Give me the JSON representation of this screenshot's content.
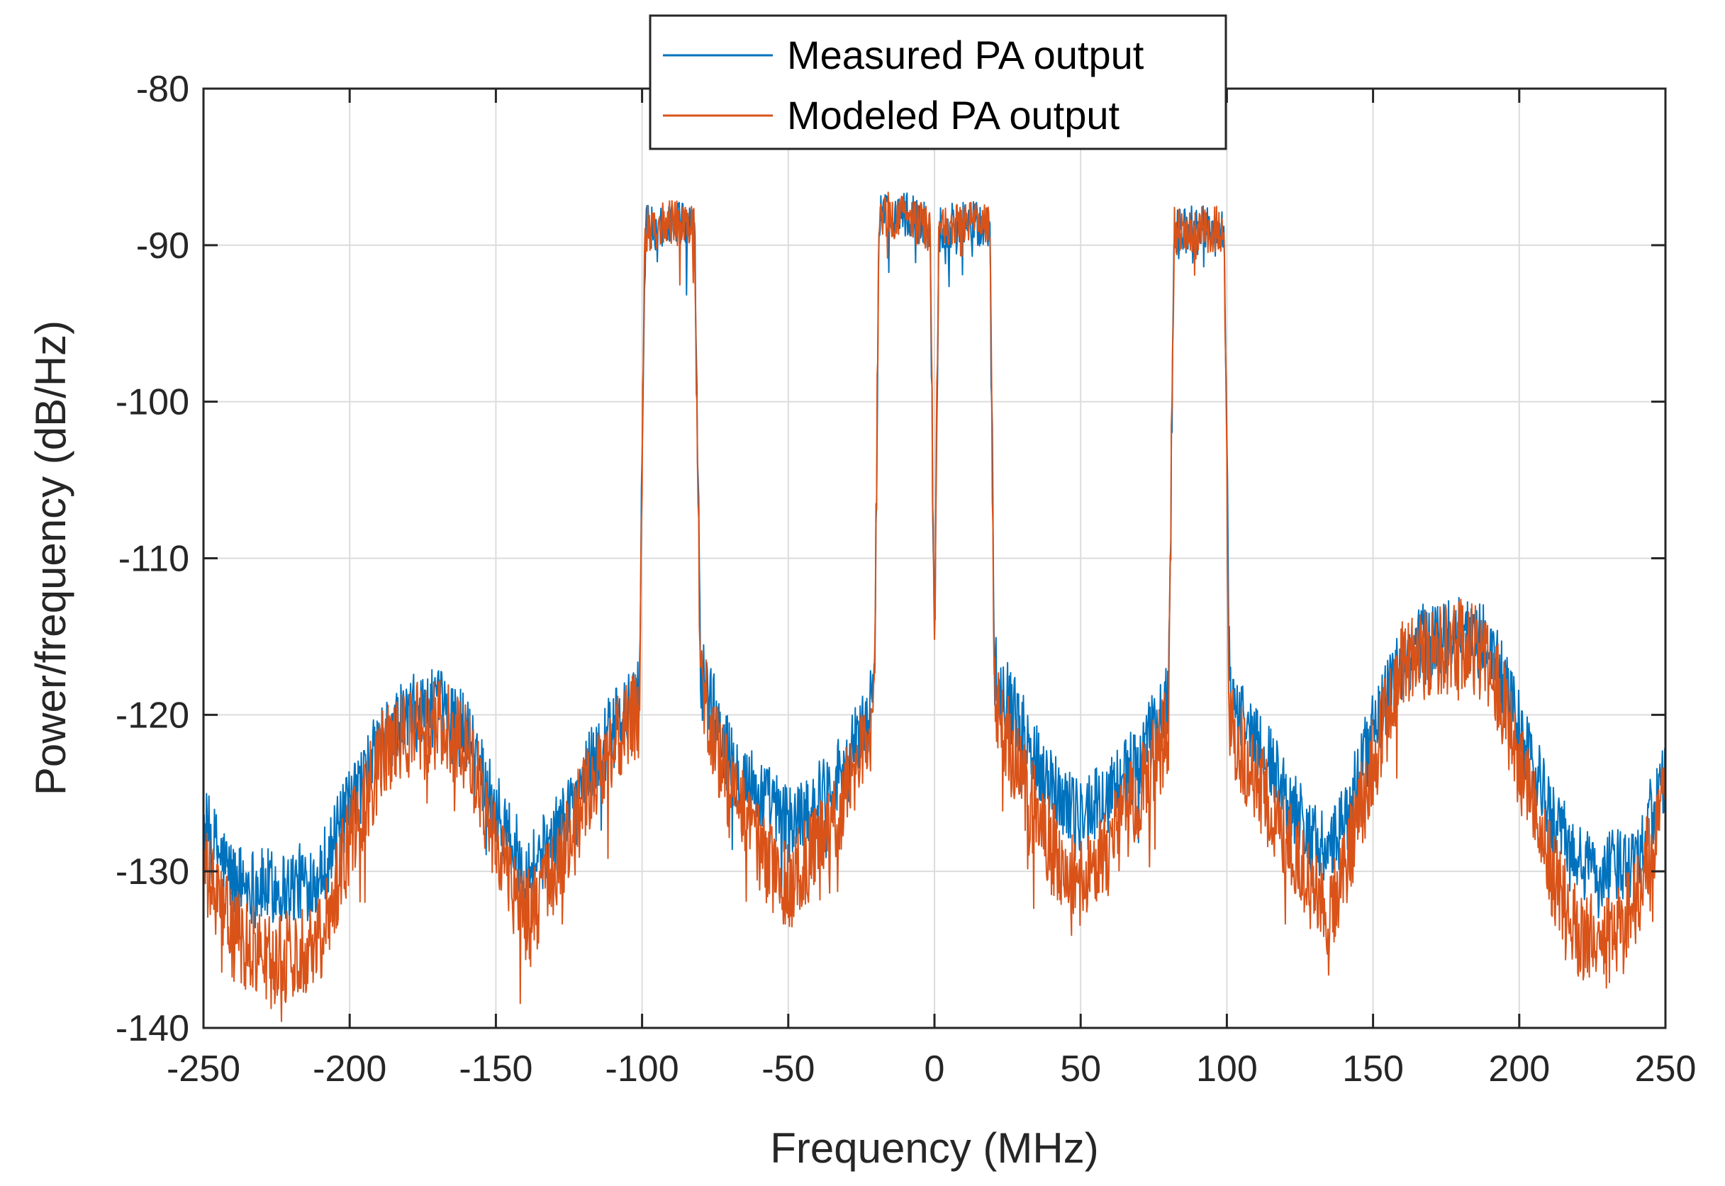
{
  "chart_data": {
    "type": "line",
    "title": "",
    "xlabel": "Frequency (MHz)",
    "ylabel": "Power/frequency (dB/Hz)",
    "xlim": [
      -250,
      250
    ],
    "ylim": [
      -140,
      -80
    ],
    "xticks": [
      -250,
      -200,
      -150,
      -100,
      -50,
      0,
      50,
      100,
      150,
      200,
      250
    ],
    "yticks": [
      -80,
      -90,
      -100,
      -110,
      -120,
      -130,
      -140
    ],
    "xtick_labels": [
      "-250",
      "-200",
      "-150",
      "-100",
      "-50",
      "0",
      "50",
      "100",
      "150",
      "200",
      "250"
    ],
    "ytick_labels": [
      "-80",
      "-90",
      "-100",
      "-110",
      "-120",
      "-130",
      "-140"
    ],
    "grid": true,
    "legend_position": "top-center",
    "series": [
      {
        "name": "Measured PA output",
        "color": "#0072BD",
        "noise_amplitude_db": 2.5,
        "x": [
          -250,
          -240,
          -230,
          -220,
          -210,
          -200,
          -190,
          -180,
          -170,
          -160,
          -150,
          -140,
          -130,
          -120,
          -110,
          -101,
          -99,
          -90,
          -82,
          -80,
          -70,
          -60,
          -50,
          -40,
          -30,
          -20.5,
          -19,
          -10,
          -1.5,
          0,
          1.5,
          10,
          19,
          20.5,
          30,
          40,
          50,
          60,
          70,
          80,
          82,
          90,
          99,
          101,
          110,
          120,
          130,
          135,
          140,
          150,
          160,
          170,
          180,
          190,
          200,
          210,
          220,
          230,
          240,
          250
        ],
        "y": [
          -127,
          -130.5,
          -131,
          -131,
          -130,
          -126,
          -122,
          -120,
          -119.5,
          -121,
          -126,
          -130,
          -128,
          -124,
          -121,
          -119,
          -89,
          -88.5,
          -89,
          -117,
          -123,
          -125,
          -127,
          -125.5,
          -123,
          -119,
          -88,
          -88,
          -89,
          -116,
          -89,
          -88.5,
          -89,
          -117,
          -121,
          -124.5,
          -126.5,
          -125,
          -123,
          -119,
          -89,
          -89,
          -89,
          -119,
          -121.5,
          -125,
          -128,
          -129,
          -127,
          -121,
          -116.5,
          -115,
          -115,
          -115.5,
          -121,
          -126,
          -129.5,
          -130,
          -129,
          -124
        ]
      },
      {
        "name": "Modeled PA output",
        "color": "#D95319",
        "noise_amplitude_db": 3,
        "x": [
          -250,
          -240,
          -230,
          -220,
          -210,
          -200,
          -190,
          -180,
          -170,
          -160,
          -150,
          -140,
          -130,
          -120,
          -110,
          -101,
          -99,
          -90,
          -82,
          -80,
          -70,
          -60,
          -50,
          -40,
          -30,
          -20.5,
          -19,
          -10,
          -1.5,
          0,
          1.5,
          10,
          19,
          20.5,
          30,
          40,
          50,
          60,
          70,
          80,
          82,
          90,
          99,
          101,
          110,
          120,
          130,
          135,
          140,
          150,
          160,
          170,
          180,
          190,
          200,
          210,
          220,
          230,
          240,
          250
        ],
        "y": [
          -130,
          -134,
          -135.5,
          -135.5,
          -134,
          -128,
          -123,
          -121,
          -120.5,
          -122,
          -128,
          -133,
          -130.5,
          -125.5,
          -122,
          -120,
          -89,
          -88.5,
          -89,
          -118,
          -125,
          -128.5,
          -131,
          -128.5,
          -125,
          -120,
          -88,
          -88,
          -89,
          -117,
          -89,
          -88.5,
          -89,
          -119,
          -124.5,
          -128.5,
          -130.5,
          -128,
          -125,
          -121,
          -89,
          -89,
          -89,
          -121,
          -124,
          -128,
          -131.5,
          -132.5,
          -130,
          -123,
          -117,
          -116,
          -115.5,
          -116.5,
          -123,
          -129.5,
          -134,
          -134.5,
          -132,
          -125
        ]
      }
    ]
  },
  "legend": {
    "items": [
      "Measured PA output",
      "Modeled PA output"
    ]
  }
}
